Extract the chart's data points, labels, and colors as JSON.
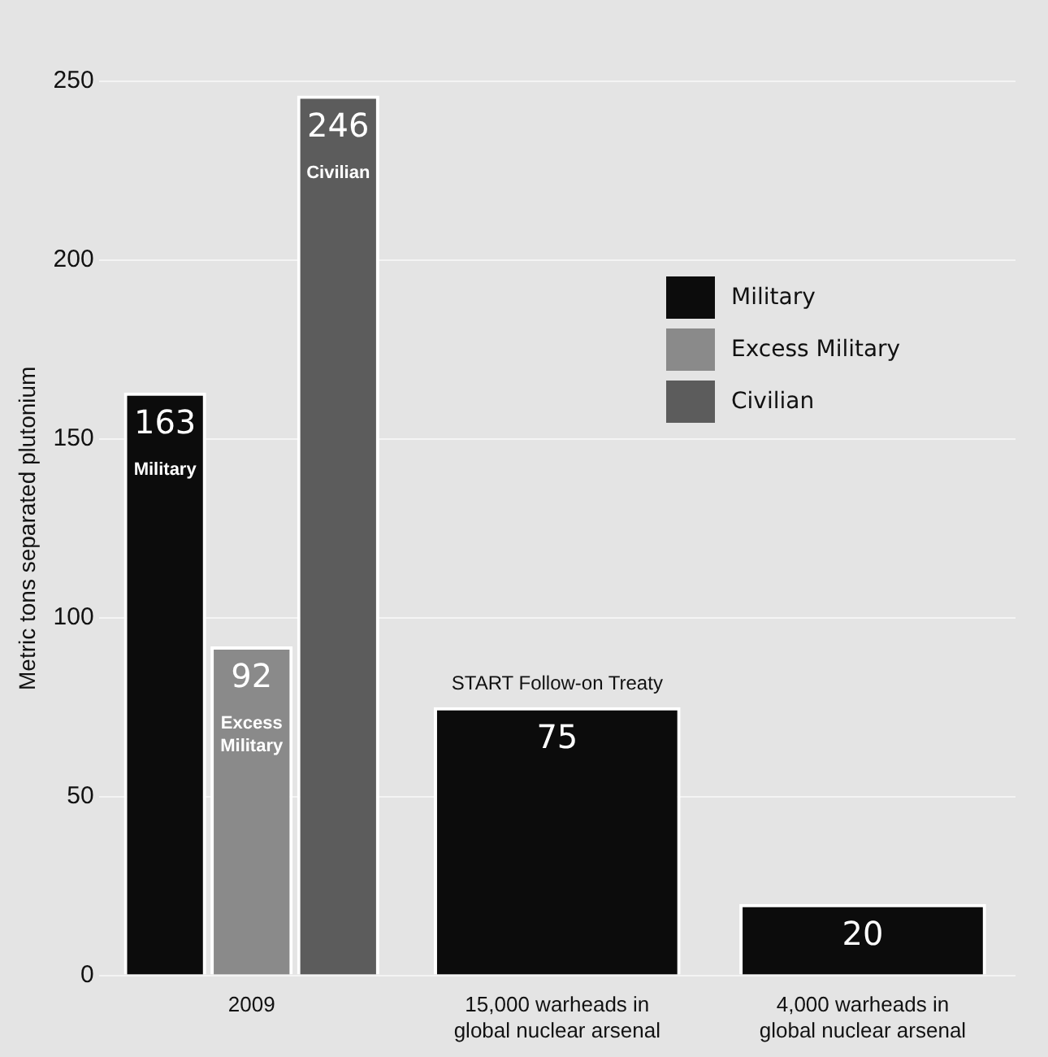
{
  "chart_data": {
    "type": "bar",
    "ylabel": "Metric tons separated plutonium",
    "categories": [
      "2009",
      "15,000 warheads in global nuclear arsenal",
      "4,000 warheads in global nuclear arsenal"
    ],
    "series": [
      {
        "name": "Military",
        "color": "#0c0c0c",
        "values": [
          163,
          75,
          20
        ],
        "value_labels": [
          "163 Military",
          "75",
          "20"
        ]
      },
      {
        "name": "Excess Military",
        "color": "#8a8a8a",
        "values": [
          92,
          null,
          null
        ],
        "value_labels": [
          "92 Excess Military",
          null,
          null
        ]
      },
      {
        "name": "Civilian",
        "color": "#5c5c5c",
        "values": [
          246,
          null,
          null
        ],
        "value_labels": [
          "246 Civilian",
          null,
          null
        ]
      }
    ],
    "ylim": [
      0,
      250
    ],
    "yticks": [
      0,
      50,
      100,
      150,
      200,
      250
    ],
    "grid": "y",
    "legend": "top right",
    "annotations": [
      {
        "text": "START Follow-on Treaty",
        "x": "15,000 warheads in global nuclear arsenal",
        "y": 75
      }
    ]
  }
}
